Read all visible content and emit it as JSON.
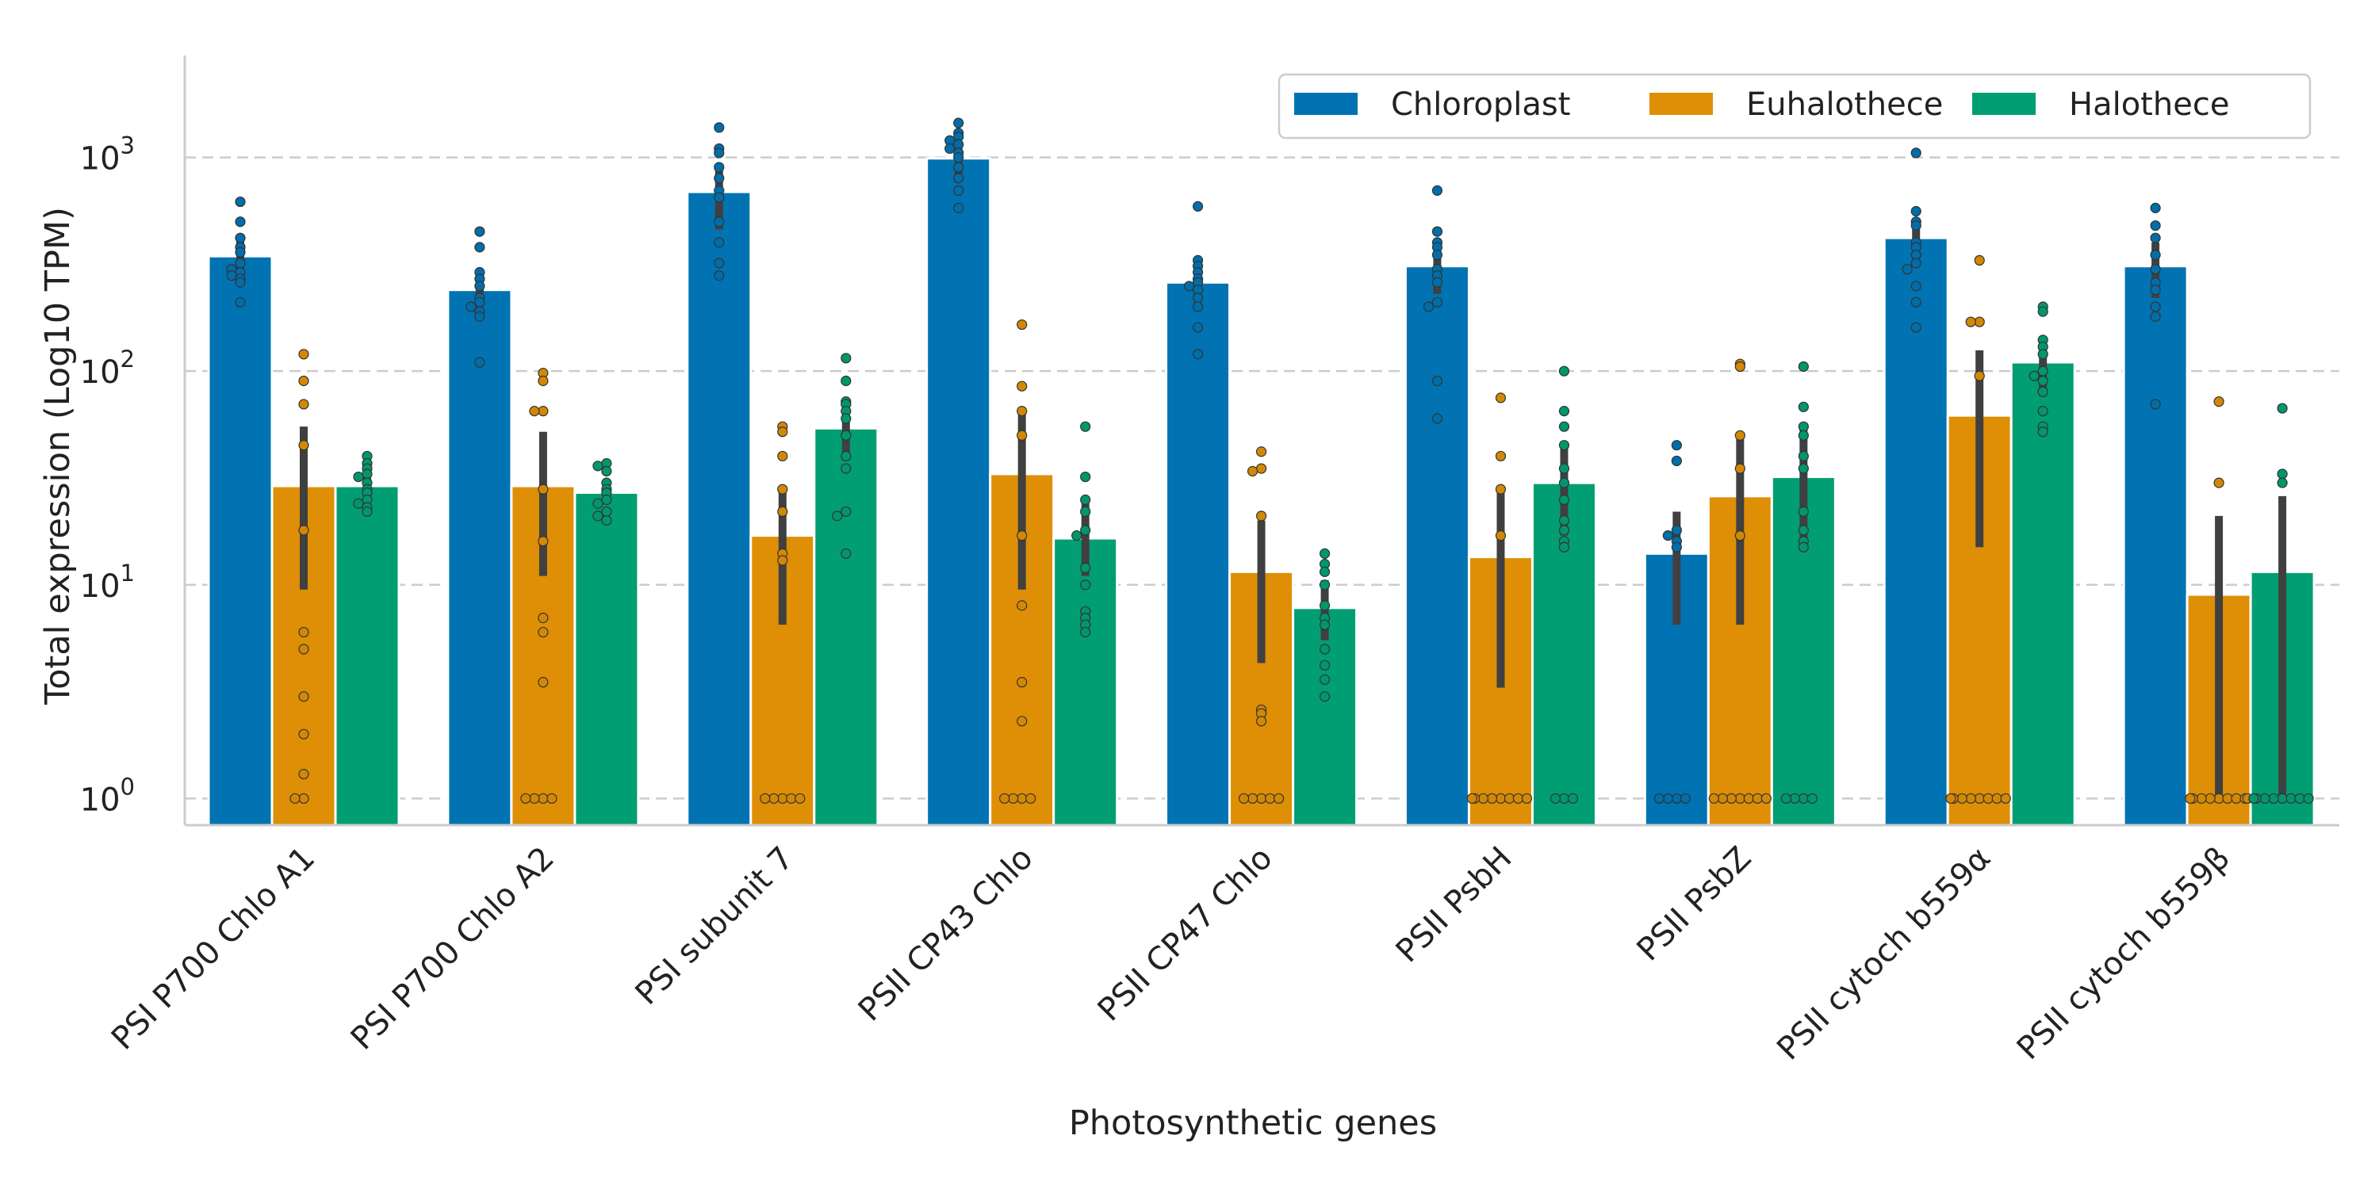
{
  "chart_data": {
    "type": "bar",
    "xlabel": "Photosynthetic genes",
    "ylabel": "Total expression (Log10 TPM)",
    "yscale": "log",
    "ylim": [
      0.75,
      3000
    ],
    "grid": "horizontal dashed at major y ticks",
    "legend_position": "top-right",
    "categories": [
      "PSI P700 Chlo A1",
      "PSI P700 Chlo A2",
      "PSI subunit 7",
      "PSII CP43 Chlo",
      "PSII CP47 Chlo",
      "PSII PsbH",
      "PSII PsbZ",
      "PSII cytoch b559α",
      "PSII cytoch b559β"
    ],
    "y_ticks": [
      {
        "value": 1,
        "base": "10",
        "exp": "0"
      },
      {
        "value": 10,
        "base": "10",
        "exp": "1"
      },
      {
        "value": 100,
        "base": "10",
        "exp": "2"
      },
      {
        "value": 1000,
        "base": "10",
        "exp": "3"
      }
    ],
    "series": [
      {
        "name": "Chloroplast",
        "color": "#0173b2",
        "values": [
          345,
          240,
          690,
          990,
          260,
          310,
          14,
          420,
          310
        ],
        "error_low": [
          270,
          200,
          460,
          800,
          200,
          230,
          6.5,
          320,
          220
        ],
        "error_high": [
          420,
          300,
          920,
          1180,
          320,
          390,
          22,
          520,
          400
        ],
        "points": [
          [
            620,
            500,
            420,
            380,
            360,
            320,
            300,
            290,
            280,
            270,
            260,
            210
          ],
          [
            450,
            380,
            290,
            270,
            250,
            220,
            210,
            200,
            190,
            180,
            110
          ],
          [
            1380,
            1100,
            1050,
            900,
            800,
            700,
            650,
            500,
            400,
            320,
            280
          ],
          [
            1450,
            1300,
            1250,
            1200,
            1150,
            1100,
            1050,
            1000,
            900,
            800,
            700,
            580
          ],
          [
            590,
            330,
            310,
            290,
            270,
            260,
            250,
            240,
            220,
            200,
            160,
            120
          ],
          [
            700,
            450,
            400,
            380,
            350,
            300,
            280,
            260,
            210,
            200,
            90,
            60
          ],
          [
            45,
            38,
            18,
            17,
            16,
            15,
            1,
            1,
            1,
            1
          ],
          [
            1050,
            560,
            500,
            480,
            400,
            380,
            350,
            320,
            300,
            250,
            210,
            160
          ],
          [
            580,
            480,
            420,
            350,
            300,
            260,
            240,
            200,
            180,
            70
          ]
        ]
      },
      {
        "name": "Euhalothece",
        "color": "#de8f05",
        "values": [
          29,
          29,
          17,
          33,
          11.5,
          13.5,
          26,
          62,
          9
        ],
        "error_low": [
          9.5,
          11,
          6.5,
          9.5,
          4.3,
          3.3,
          6.5,
          15,
          1
        ],
        "error_high": [
          55,
          52,
          28,
          65,
          20,
          27,
          48,
          125,
          21
        ],
        "points": [
          [
            120,
            90,
            70,
            45,
            18,
            6,
            5,
            3,
            2,
            1.3,
            1,
            1
          ],
          [
            98,
            90,
            65,
            65,
            28,
            16,
            7,
            6,
            3.5,
            1,
            1,
            1,
            1
          ],
          [
            55,
            52,
            40,
            28,
            22,
            14,
            13,
            1,
            1,
            1,
            1,
            1
          ],
          [
            165,
            85,
            65,
            50,
            17,
            8,
            3.5,
            2.3,
            1,
            1,
            1,
            1
          ],
          [
            42,
            35,
            34,
            21,
            2.6,
            2.5,
            2.3,
            1,
            1,
            1,
            1,
            1
          ],
          [
            75,
            40,
            28,
            17,
            1,
            1,
            1,
            1,
            1,
            1,
            1,
            1
          ],
          [
            108,
            105,
            50,
            35,
            17,
            1,
            1,
            1,
            1,
            1,
            1,
            1
          ],
          [
            330,
            170,
            170,
            95,
            1,
            1,
            1,
            1,
            1,
            1,
            1,
            1
          ],
          [
            72,
            30,
            1,
            1,
            1,
            1,
            1,
            1,
            1,
            1,
            1
          ]
        ]
      },
      {
        "name": "Halothece",
        "color": "#029e73",
        "values": [
          29,
          27,
          54,
          16.5,
          7.8,
          30,
          32,
          110,
          11.5
        ],
        "error_low": [
          25,
          24,
          40,
          11,
          5.5,
          17,
          16,
          80,
          1
        ],
        "error_high": [
          33,
          31,
          68,
          24,
          10.5,
          45,
          55,
          140,
          26
        ],
        "points": [
          [
            40,
            37,
            35,
            33,
            32,
            30,
            28,
            27,
            25,
            24,
            23,
            22
          ],
          [
            37,
            36,
            34,
            30,
            28,
            27,
            25,
            24,
            22,
            21,
            20
          ],
          [
            115,
            90,
            72,
            70,
            65,
            60,
            50,
            40,
            35,
            22,
            21,
            14
          ],
          [
            55,
            32,
            25,
            22,
            18,
            17,
            12,
            10,
            7.5,
            7,
            6.5,
            6
          ],
          [
            14,
            12.5,
            11.5,
            10,
            8,
            7,
            6.5,
            5,
            4.2,
            3.6,
            3
          ],
          [
            100,
            65,
            55,
            45,
            35,
            30,
            25,
            20,
            18,
            16,
            15,
            1,
            1,
            1
          ],
          [
            105,
            68,
            55,
            50,
            40,
            35,
            22,
            18,
            16,
            15,
            1,
            1,
            1,
            1
          ],
          [
            200,
            190,
            140,
            130,
            120,
            100,
            95,
            90,
            80,
            65,
            55,
            52
          ],
          [
            67,
            33,
            30,
            1,
            1,
            1,
            1,
            1,
            1,
            1,
            1
          ]
        ]
      }
    ]
  }
}
